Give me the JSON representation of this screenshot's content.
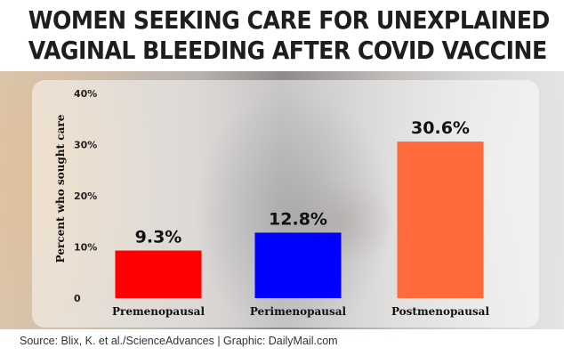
{
  "headline": {
    "line1": "WOMEN SEEKING CARE FOR UNEXPLAINED",
    "line2": "VAGINAL BLEEDING AFTER COVID VACCINE"
  },
  "source": "Source: Blix, K. et al./ScienceAdvances  |  Graphic: DailyMail.com",
  "chart_data": {
    "type": "bar",
    "title": "WOMEN SEEKING CARE FOR UNEXPLAINED VAGINAL BLEEDING AFTER COVID VACCINE",
    "ylabel": "Percent who sought care",
    "xlabel": "",
    "ylim": [
      0,
      40
    ],
    "yticks": [
      0,
      10,
      20,
      30,
      40
    ],
    "ytick_labels": [
      "0",
      "10%",
      "20%",
      "30%",
      "40%"
    ],
    "grid": false,
    "categories": [
      "Premenopausal",
      "Perimenopausal",
      "Postmenopausal"
    ],
    "values": [
      9.3,
      12.8,
      30.6
    ],
    "data_labels": [
      "9.3%",
      "12.8%",
      "30.6%"
    ],
    "colors": [
      "#ff0000",
      "#0000ff",
      "#ff6a3d"
    ]
  }
}
